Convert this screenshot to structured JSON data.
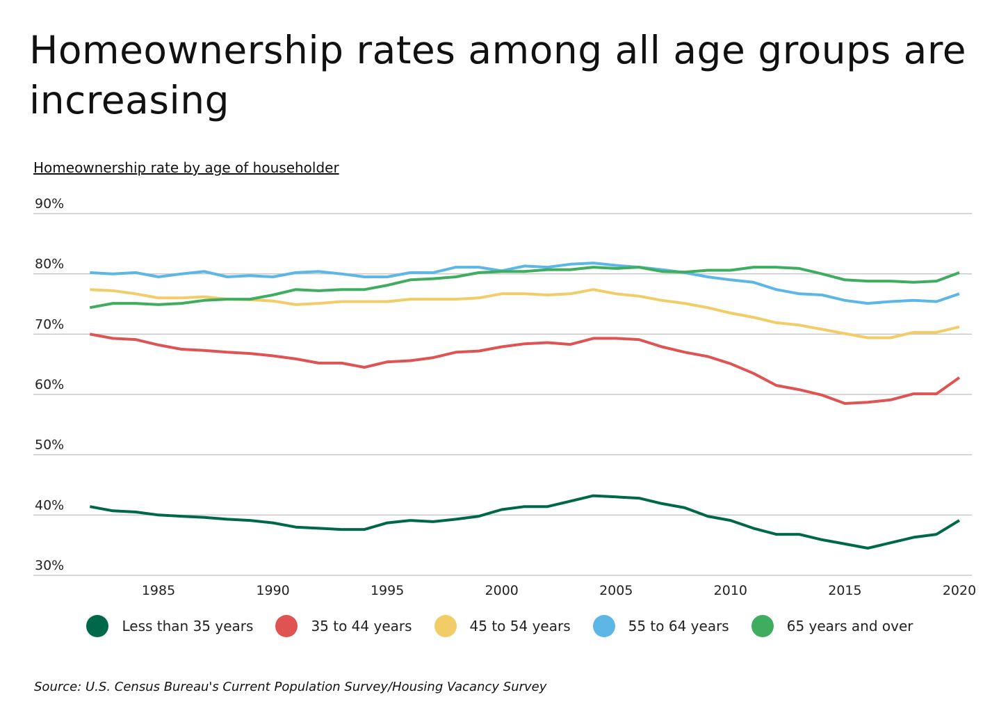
{
  "title": "Homeownership rates among all age groups are increasing",
  "subtitle": "Homeownership rate by age of householder",
  "source": "Source:  U.S. Census Bureau's Current Population Survey/Housing Vacancy Survey",
  "chart_data": {
    "type": "line",
    "title": "Homeownership rates among all age groups are increasing",
    "subtitle": "Homeownership rate by age of householder",
    "ylim": [
      30,
      90
    ],
    "yticks": [
      "90%",
      "80%",
      "70%",
      "60%",
      "50%",
      "40%",
      "30%"
    ],
    "ytick_values": [
      90,
      80,
      70,
      60,
      50,
      40,
      30
    ],
    "xticks": [
      "1985",
      "1990",
      "1995",
      "2000",
      "2005",
      "2010",
      "2015",
      "2020"
    ],
    "xtick_values": [
      1985,
      1990,
      1995,
      2000,
      2005,
      2010,
      2015,
      2020
    ],
    "grid": "horizontal",
    "legend_position": "bottom",
    "x": [
      1982,
      1983,
      1984,
      1985,
      1986,
      1987,
      1988,
      1989,
      1990,
      1991,
      1992,
      1993,
      1994,
      1995,
      1996,
      1997,
      1998,
      1999,
      2000,
      2001,
      2002,
      2003,
      2004,
      2005,
      2006,
      2007,
      2008,
      2009,
      2010,
      2011,
      2012,
      2013,
      2014,
      2015,
      2016,
      2017,
      2018,
      2019,
      2020
    ],
    "series": [
      {
        "name": "Less than 35 years",
        "color": "#00684a",
        "values": [
          41.4,
          40.7,
          40.5,
          40.0,
          39.8,
          39.6,
          39.3,
          39.1,
          38.7,
          38.0,
          37.8,
          37.6,
          37.6,
          38.7,
          39.1,
          38.9,
          39.3,
          39.8,
          40.9,
          41.4,
          41.4,
          42.3,
          43.2,
          43.0,
          42.8,
          41.9,
          41.2,
          39.8,
          39.1,
          37.8,
          36.8,
          36.8,
          35.9,
          35.2,
          34.5,
          35.4,
          36.3,
          36.8,
          39.1
        ]
      },
      {
        "name": "35 to 44 years",
        "color": "#df5353",
        "values": [
          70.0,
          69.3,
          69.1,
          68.2,
          67.5,
          67.3,
          67.0,
          66.8,
          66.4,
          65.9,
          65.2,
          65.2,
          64.5,
          65.4,
          65.6,
          66.1,
          67.0,
          67.2,
          67.9,
          68.4,
          68.6,
          68.3,
          69.3,
          69.3,
          69.1,
          67.9,
          67.0,
          66.3,
          65.1,
          63.5,
          61.5,
          60.8,
          59.9,
          58.5,
          58.7,
          59.1,
          60.1,
          60.1,
          62.8
        ]
      },
      {
        "name": "45 to 54 years",
        "color": "#f2cc67",
        "values": [
          77.4,
          77.2,
          76.7,
          76.0,
          76.0,
          76.2,
          75.8,
          75.7,
          75.5,
          74.9,
          75.1,
          75.4,
          75.4,
          75.4,
          75.8,
          75.8,
          75.8,
          76.0,
          76.7,
          76.7,
          76.5,
          76.7,
          77.4,
          76.7,
          76.3,
          75.6,
          75.1,
          74.4,
          73.5,
          72.8,
          71.9,
          71.5,
          70.8,
          70.1,
          69.4,
          69.4,
          70.3,
          70.3,
          71.2
        ]
      },
      {
        "name": "55 to 64 years",
        "color": "#5cb6e6",
        "values": [
          80.2,
          80.0,
          80.2,
          79.5,
          80.0,
          80.4,
          79.5,
          79.7,
          79.5,
          80.2,
          80.4,
          80.0,
          79.5,
          79.5,
          80.2,
          80.2,
          81.1,
          81.1,
          80.5,
          81.3,
          81.1,
          81.6,
          81.8,
          81.4,
          81.1,
          80.7,
          80.2,
          79.5,
          79.0,
          78.6,
          77.4,
          76.7,
          76.5,
          75.6,
          75.1,
          75.4,
          75.6,
          75.4,
          76.7
        ]
      },
      {
        "name": "65 years and over",
        "color": "#3fad5f",
        "values": [
          74.4,
          75.1,
          75.1,
          74.9,
          75.1,
          75.6,
          75.8,
          75.8,
          76.5,
          77.4,
          77.2,
          77.4,
          77.4,
          78.1,
          79.0,
          79.2,
          79.5,
          80.2,
          80.4,
          80.4,
          80.7,
          80.7,
          81.1,
          80.9,
          81.1,
          80.4,
          80.3,
          80.6,
          80.6,
          81.1,
          81.1,
          80.9,
          80.0,
          79.0,
          78.8,
          78.8,
          78.6,
          78.8,
          80.2
        ]
      }
    ]
  }
}
